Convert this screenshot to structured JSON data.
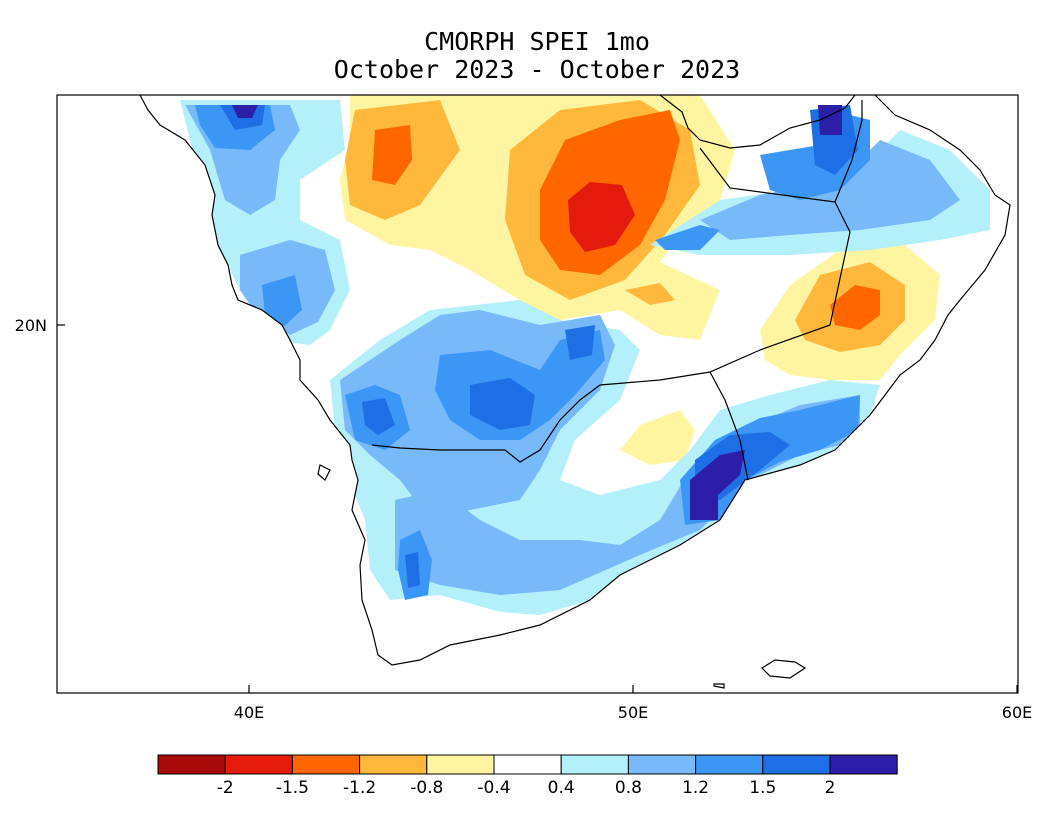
{
  "title_line1": "CMORPH SPEI 1mo",
  "title_line2": "October 2023 - October 2023",
  "axes": {
    "x_ticks": [
      "40E",
      "50E",
      "60E"
    ],
    "y_ticks": [
      "20N"
    ]
  },
  "legend": {
    "labels": [
      "-2",
      "-1.5",
      "-1.2",
      "-0.8",
      "-0.4",
      "0.4",
      "0.8",
      "1.2",
      "1.5",
      "2"
    ],
    "colors": [
      "#a80a0a",
      "#e31a0c",
      "#ff6600",
      "#ffb83c",
      "#fff5a0",
      "#ffffff",
      "#b4f0fa",
      "#78b9fa",
      "#3c96f5",
      "#1e6ee6",
      "#2d1eaa"
    ]
  },
  "chart_data": {
    "type": "heatmap",
    "variable": "CMORPH SPEI 1mo",
    "period": "October 2023 - October 2023",
    "x_range": [
      "35E",
      "60E"
    ],
    "y_range": [
      "11N",
      "26N"
    ],
    "x_ticks": [
      "40E",
      "50E",
      "60E"
    ],
    "y_ticks": [
      "20N"
    ],
    "levels": [
      -2,
      -1.5,
      -1.2,
      -0.8,
      -0.4,
      0.4,
      0.8,
      1.2,
      1.5,
      2
    ],
    "features": [
      {
        "feature": "dry maximum",
        "lon": 49.5,
        "lat": 22.8,
        "value_class": "< -2"
      },
      {
        "feature": "dry patch",
        "lon": 43.5,
        "lat": 24.8,
        "value_class": "-1.5 to -1.2"
      },
      {
        "feature": "dry patch",
        "lon": 56.5,
        "lat": 20.5,
        "value_class": "-1.5 to -1.2"
      },
      {
        "feature": "wet maximum",
        "lon": 53.0,
        "lat": 16.8,
        "value_class": "> 2"
      },
      {
        "feature": "wet maximum",
        "lon": 55.0,
        "lat": 25.5,
        "value_class": "> 2"
      },
      {
        "feature": "wet maximum",
        "lon": 40.0,
        "lat": 25.5,
        "value_class": "> 2"
      },
      {
        "feature": "wet patch",
        "lon": 47.0,
        "lat": 18.5,
        "value_class": "1.5 to 2"
      },
      {
        "feature": "wet patch",
        "lon": 43.0,
        "lat": 18.0,
        "value_class": "1.5 to 2"
      },
      {
        "feature": "wet patch",
        "lon": 44.0,
        "lat": 14.8,
        "value_class": "1.5 to 2"
      }
    ]
  }
}
